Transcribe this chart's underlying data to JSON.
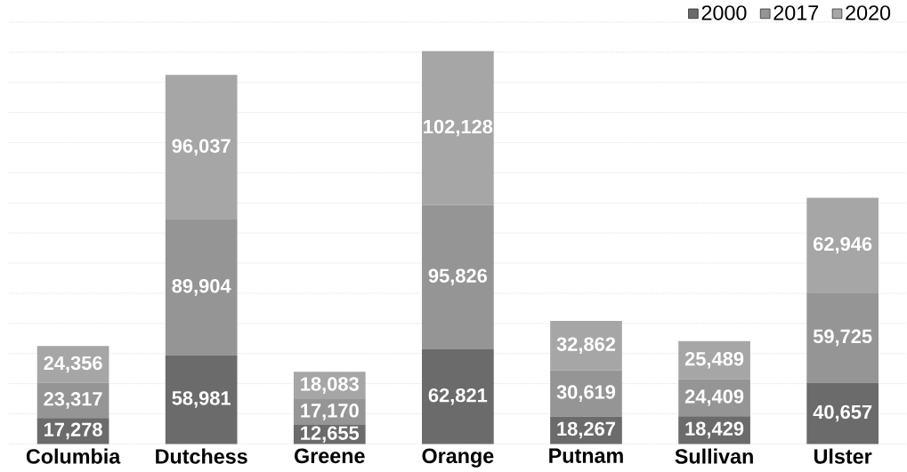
{
  "chart_data": {
    "type": "bar",
    "stacked": true,
    "categories": [
      "Columbia",
      "Dutchess",
      "Greene",
      "Orange",
      "Putnam",
      "Sullivan",
      "Ulster"
    ],
    "series": [
      {
        "name": "2000",
        "color": "#6b6b6b",
        "values": [
          17278,
          58981,
          12655,
          62821,
          18267,
          18429,
          40657
        ],
        "value_labels": [
          "17,278",
          "58,981",
          "12,655",
          "62,821",
          "18,267",
          "18,429",
          "40,657"
        ]
      },
      {
        "name": "2017",
        "color": "#959595",
        "values": [
          23317,
          89904,
          17170,
          95826,
          30619,
          24409,
          59725
        ],
        "value_labels": [
          "23,317",
          "89,904",
          "17,170",
          "95,826",
          "30,619",
          "24,409",
          "59,725"
        ]
      },
      {
        "name": "2020",
        "color": "#a6a6a6",
        "values": [
          24356,
          96037,
          18083,
          102128,
          32862,
          25489,
          62946
        ],
        "value_labels": [
          "24,356",
          "96,037",
          "18,083",
          "102,128",
          "32,862",
          "25,489",
          "62,946"
        ]
      }
    ],
    "tick_labels": "x",
    "grid": "y",
    "legend": "top right"
  }
}
